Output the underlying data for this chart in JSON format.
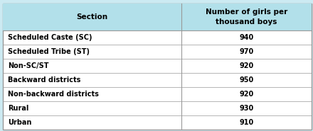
{
  "sections": [
    "Scheduled Caste (SC)",
    "Scheduled Tribe (ST)",
    "Non-SC/ST",
    "Backward districts",
    "Non-backward districts",
    "Rural",
    "Urban"
  ],
  "values": [
    940,
    970,
    920,
    950,
    920,
    930,
    910
  ],
  "header_section": "Section",
  "header_value": "Number of girls per\nthousand boys",
  "header_bg": "#b2e0ea",
  "table_bg": "#ffffff",
  "outer_bg": "#cceaf2",
  "border_color": "#999999",
  "header_text_color": "#000000",
  "row_text_color": "#000000",
  "font_size_header": 7.5,
  "font_size_row": 7.0,
  "col_split": 0.58
}
